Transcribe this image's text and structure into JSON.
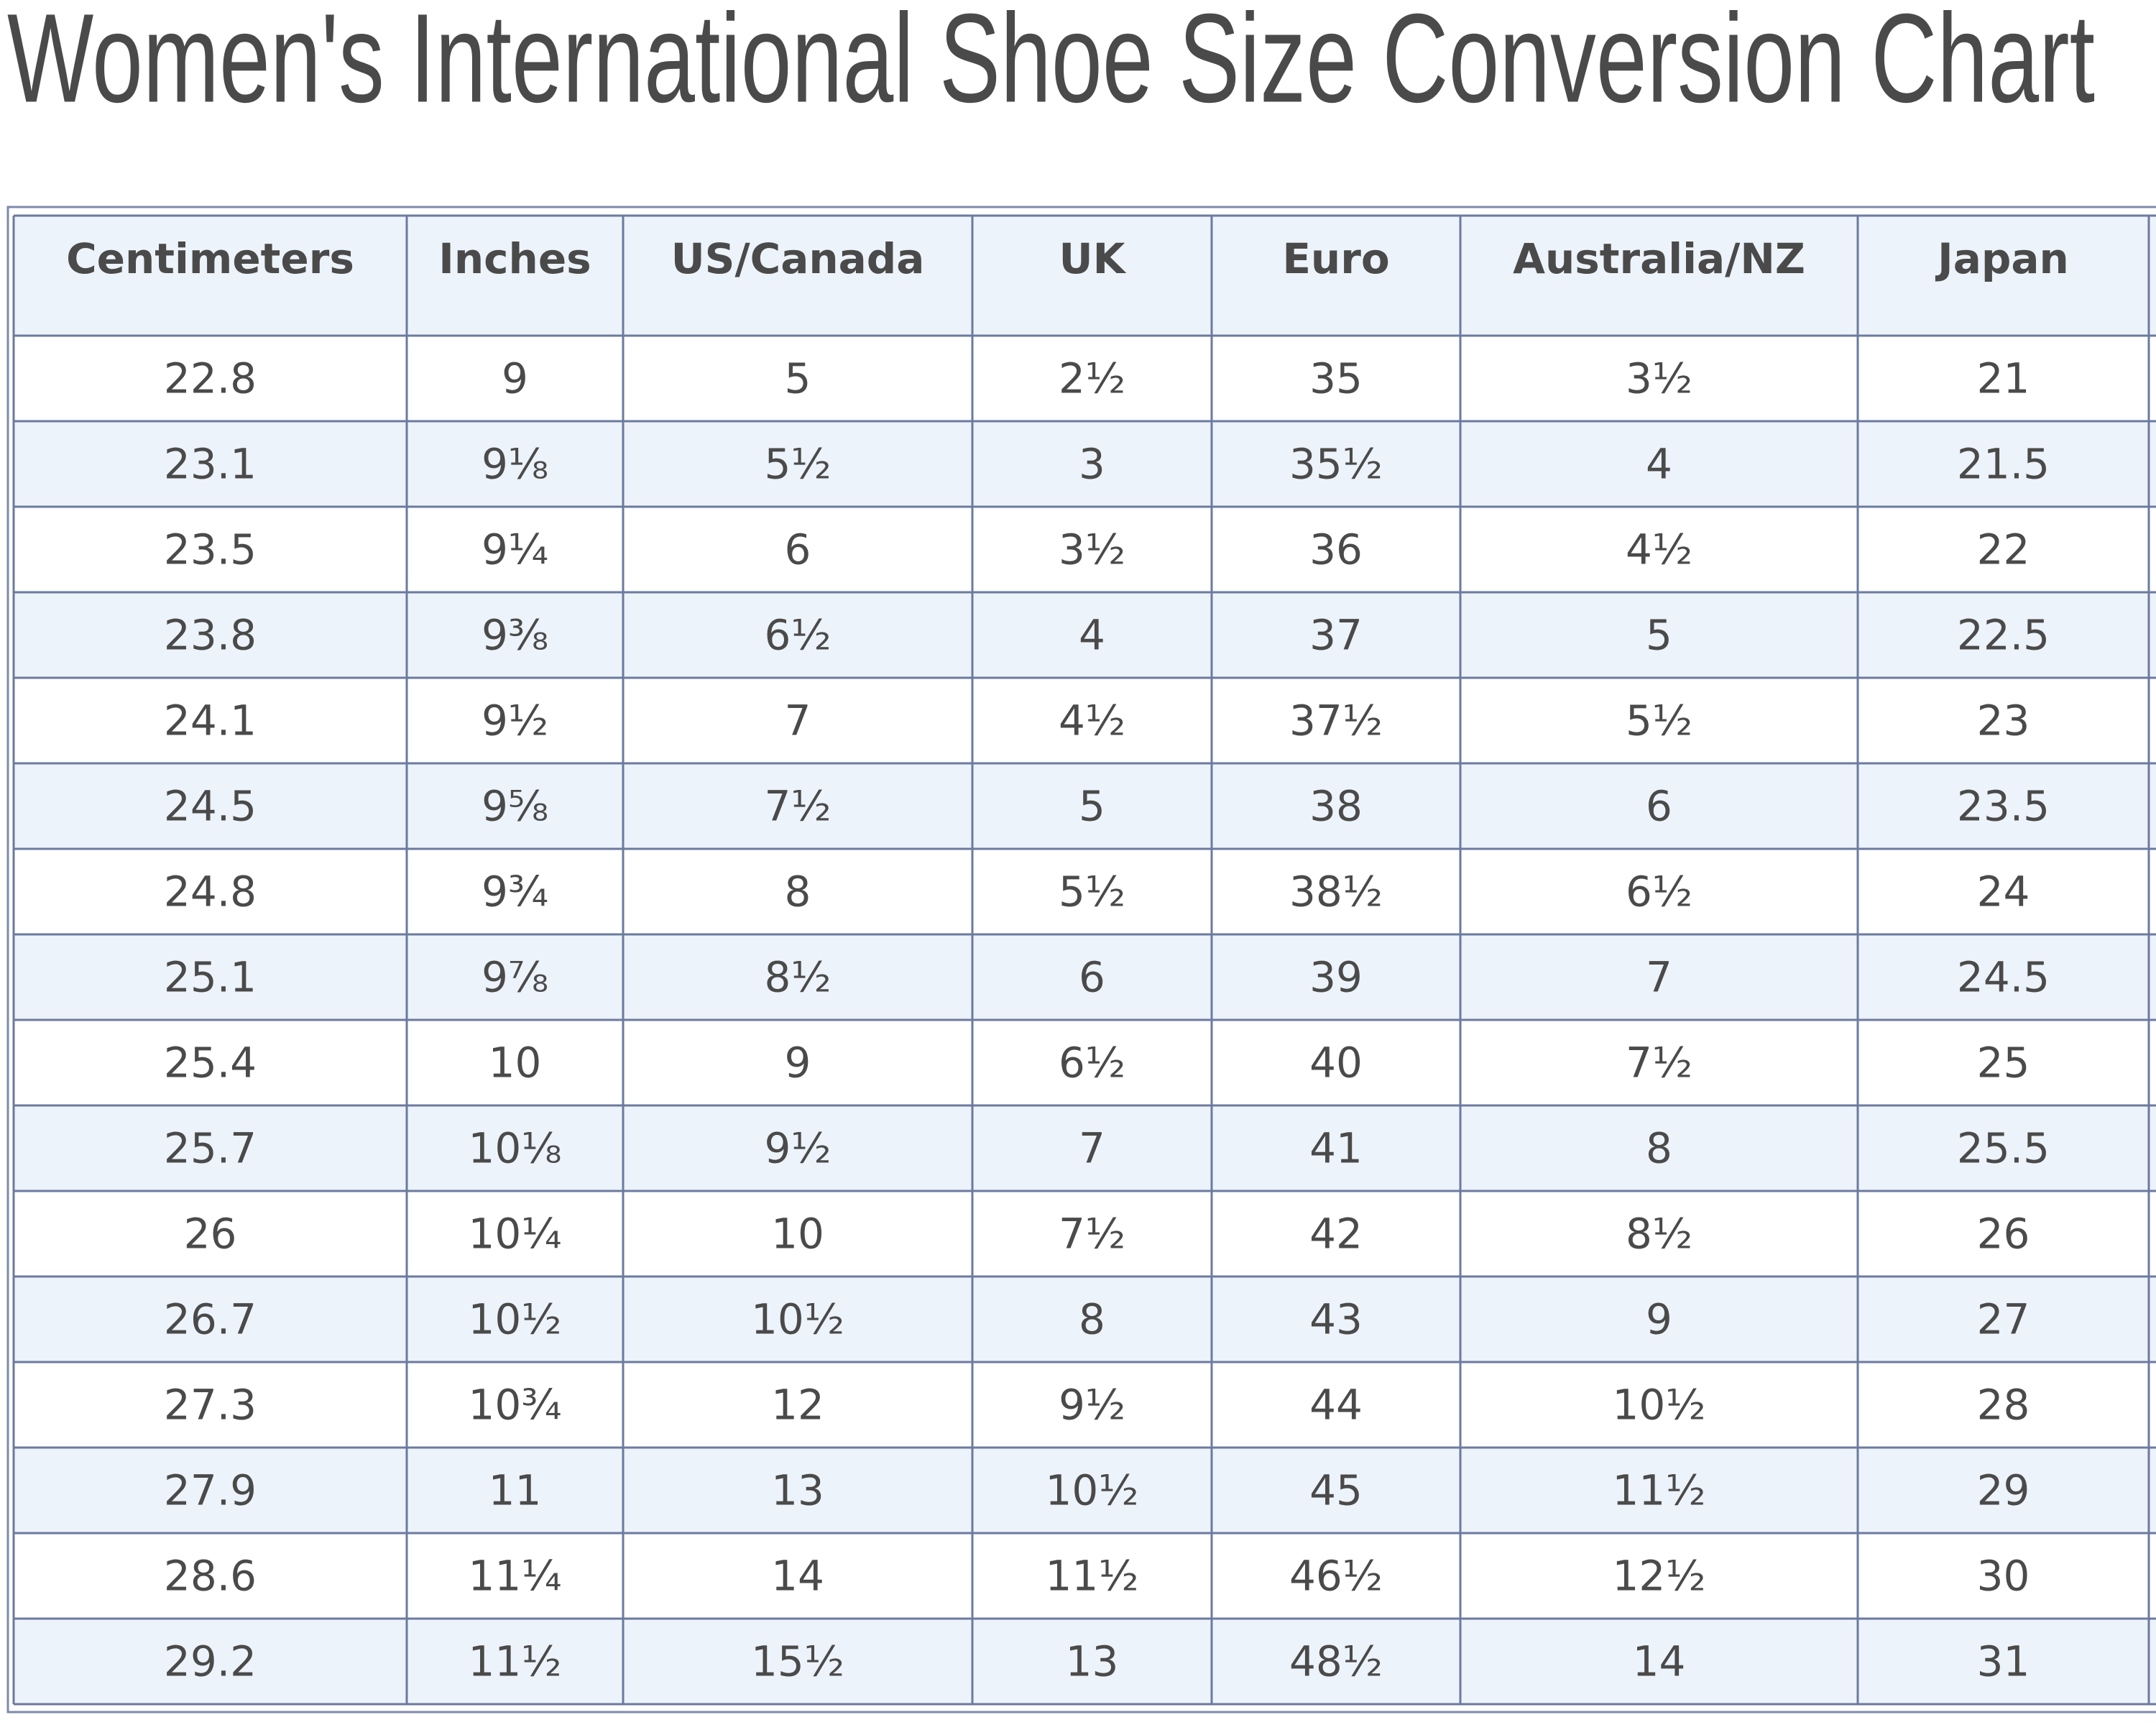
{
  "title": "Women's International Shoe Size Conversion Chart",
  "table": {
    "header": [
      "Centimeters",
      "Inches",
      "US/Canada",
      "UK",
      "Euro",
      "Australia/NZ",
      "Japan"
    ],
    "rows": [
      [
        "22.8",
        "9",
        "5",
        "2½",
        "35",
        "3½",
        "21"
      ],
      [
        "23.1",
        "9⅛",
        "5½",
        "3",
        "35½",
        "4",
        "21.5"
      ],
      [
        "23.5",
        "9¼",
        "6",
        "3½",
        "36",
        "4½",
        "22"
      ],
      [
        "23.8",
        "9⅜",
        "6½",
        "4",
        "37",
        "5",
        "22.5"
      ],
      [
        "24.1",
        "9½",
        "7",
        "4½",
        "37½",
        "5½",
        "23"
      ],
      [
        "24.5",
        "9⅝",
        "7½",
        "5",
        "38",
        "6",
        "23.5"
      ],
      [
        "24.8",
        "9¾",
        "8",
        "5½",
        "38½",
        "6½",
        "24"
      ],
      [
        "25.1",
        "9⅞",
        "8½",
        "6",
        "39",
        "7",
        "24.5"
      ],
      [
        "25.4",
        "10",
        "9",
        "6½",
        "40",
        "7½",
        "25"
      ],
      [
        "25.7",
        "10⅛",
        "9½",
        "7",
        "41",
        "8",
        "25.5"
      ],
      [
        "26",
        "10¼",
        "10",
        "7½",
        "42",
        "8½",
        "26"
      ],
      [
        "26.7",
        "10½",
        "10½",
        "8",
        "43",
        "9",
        "27"
      ],
      [
        "27.3",
        "10¾",
        "12",
        "9½",
        "44",
        "10½",
        "28"
      ],
      [
        "27.9",
        "11",
        "13",
        "10½",
        "45",
        "11½",
        "29"
      ],
      [
        "28.6",
        "11¼",
        "14",
        "11½",
        "46½",
        "12½",
        "30"
      ],
      [
        "29.2",
        "11½",
        "15½",
        "13",
        "48½",
        "14",
        "31"
      ]
    ]
  }
}
